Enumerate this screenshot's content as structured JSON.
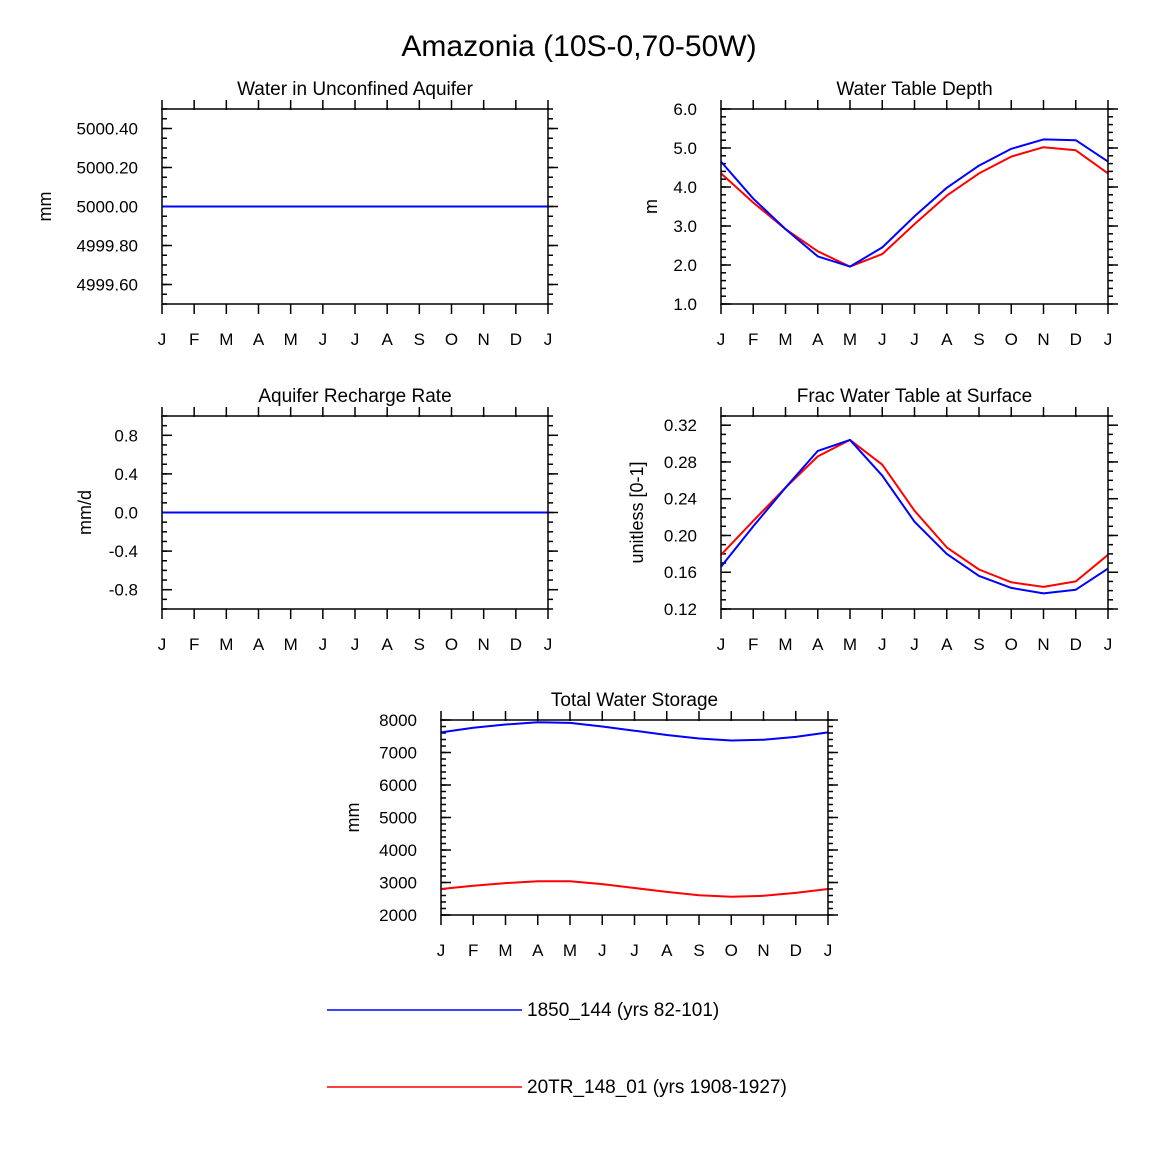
{
  "title": "Amazonia (10S-0,70-50W)",
  "colors": {
    "series1": "#0000ff",
    "series2": "#ff0000"
  },
  "month_labels": [
    "J",
    "F",
    "M",
    "A",
    "M",
    "J",
    "J",
    "A",
    "S",
    "O",
    "N",
    "D",
    "J"
  ],
  "legend": [
    {
      "label": "1850_144 (yrs 82-101)",
      "color": "#0000ff"
    },
    {
      "label": "20TR_148_01 (yrs 1908-1927)",
      "color": "#ff0000"
    }
  ],
  "chart_data": [
    {
      "type": "line",
      "title": "Water in Unconfined Aquifer",
      "ylabel": "mm",
      "ylim": [
        4999.5,
        5000.5
      ],
      "yticks": [
        4999.6,
        4999.8,
        5000.0,
        5000.2,
        5000.4
      ],
      "ytick_labels": [
        "4999.60",
        "4999.80",
        "5000.00",
        "5000.20",
        "5000.40"
      ],
      "yminor": 0.05,
      "series": [
        {
          "name": "1850_144 (yrs 82-101)",
          "values": [
            5000,
            5000,
            5000,
            5000,
            5000,
            5000,
            5000,
            5000,
            5000,
            5000,
            5000,
            5000,
            5000
          ]
        },
        {
          "name": "20TR_148_01 (yrs 1908-1927)",
          "values": [
            5000,
            5000,
            5000,
            5000,
            5000,
            5000,
            5000,
            5000,
            5000,
            5000,
            5000,
            5000,
            5000
          ]
        }
      ]
    },
    {
      "type": "line",
      "title": "Water Table Depth",
      "ylabel": "m",
      "ylim": [
        1.0,
        6.0
      ],
      "yticks": [
        1.0,
        2.0,
        3.0,
        4.0,
        5.0,
        6.0
      ],
      "ytick_labels": [
        "1.0",
        "2.0",
        "3.0",
        "4.0",
        "5.0",
        "6.0"
      ],
      "yminor": 0.2,
      "series": [
        {
          "name": "1850_144 (yrs 82-101)",
          "values": [
            4.65,
            3.7,
            2.92,
            2.22,
            1.96,
            2.45,
            3.25,
            3.98,
            4.55,
            4.98,
            5.22,
            5.2,
            4.65
          ]
        },
        {
          "name": "20TR_148_01 (yrs 1908-1927)",
          "values": [
            4.35,
            3.6,
            2.92,
            2.35,
            1.96,
            2.28,
            3.05,
            3.78,
            4.35,
            4.78,
            5.02,
            4.94,
            4.35
          ]
        }
      ]
    },
    {
      "type": "line",
      "title": "Aquifer Recharge Rate",
      "ylabel": "mm/d",
      "ylim": [
        -1.0,
        1.0
      ],
      "yticks": [
        -0.8,
        -0.4,
        0.0,
        0.4,
        0.8
      ],
      "ytick_labels": [
        "-0.8",
        "-0.4",
        "0.0",
        "0.4",
        "0.8"
      ],
      "yminor": 0.1,
      "series": [
        {
          "name": "1850_144 (yrs 82-101)",
          "values": [
            0,
            0,
            0,
            0,
            0,
            0,
            0,
            0,
            0,
            0,
            0,
            0,
            0
          ]
        },
        {
          "name": "20TR_148_01 (yrs 1908-1927)",
          "values": [
            0,
            0,
            0,
            0,
            0,
            0,
            0,
            0,
            0,
            0,
            0,
            0,
            0
          ]
        }
      ]
    },
    {
      "type": "line",
      "title": "Frac Water Table at Surface",
      "ylabel": "unitless [0-1]",
      "ylim": [
        0.12,
        0.33
      ],
      "yticks": [
        0.12,
        0.16,
        0.2,
        0.24,
        0.28,
        0.32
      ],
      "ytick_labels": [
        "0.12",
        "0.16",
        "0.20",
        "0.24",
        "0.28",
        "0.32"
      ],
      "yminor": 0.01,
      "series": [
        {
          "name": "1850_144 (yrs 82-101)",
          "values": [
            0.166,
            0.21,
            0.252,
            0.292,
            0.304,
            0.265,
            0.215,
            0.18,
            0.156,
            0.143,
            0.137,
            0.141,
            0.164
          ]
        },
        {
          "name": "20TR_148_01 (yrs 1908-1927)",
          "values": [
            0.179,
            0.216,
            0.252,
            0.286,
            0.304,
            0.277,
            0.227,
            0.187,
            0.163,
            0.149,
            0.144,
            0.15,
            0.179
          ]
        }
      ]
    },
    {
      "type": "line",
      "title": "Total Water Storage",
      "ylabel": "mm",
      "ylim": [
        2000,
        8000
      ],
      "yticks": [
        2000,
        3000,
        4000,
        5000,
        6000,
        7000,
        8000
      ],
      "ytick_labels": [
        "2000",
        "3000",
        "4000",
        "5000",
        "6000",
        "7000",
        "8000"
      ],
      "yminor": 200,
      "series": [
        {
          "name": "1850_144 (yrs 82-101)",
          "values": [
            7620,
            7760,
            7860,
            7930,
            7910,
            7800,
            7670,
            7540,
            7430,
            7370,
            7390,
            7480,
            7620
          ]
        },
        {
          "name": "20TR_148_01 (yrs 1908-1927)",
          "values": [
            2800,
            2900,
            2980,
            3040,
            3040,
            2950,
            2830,
            2710,
            2610,
            2560,
            2590,
            2680,
            2800
          ]
        }
      ]
    }
  ]
}
